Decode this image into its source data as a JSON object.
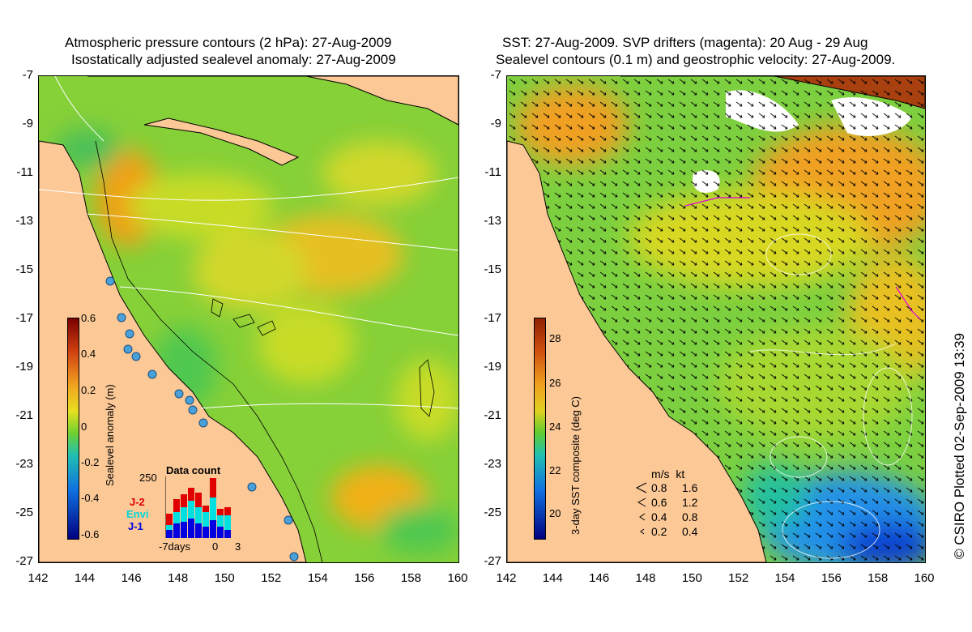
{
  "left_panel": {
    "title_line1": "Atmospheric pressure contours (2 hPa): 27-Aug-2009",
    "title_line2": "Isostatically adjusted sealevel anomaly: 27-Aug-2009",
    "colorbar": {
      "label": "Sealevel anomaly (m)",
      "ticks": [
        "0.6",
        "0.4",
        "0.2",
        "0",
        "-0.2",
        "-0.4",
        "-0.6"
      ]
    },
    "inset": {
      "title": "Data count",
      "max_label": "250",
      "x_labels": [
        "-7days",
        "0",
        "3"
      ],
      "series": [
        {
          "name": "J-2",
          "color": "#e00000"
        },
        {
          "name": "Envi",
          "color": "#00e0e0"
        },
        {
          "name": "J-1",
          "color": "#0000e0"
        }
      ]
    }
  },
  "right_panel": {
    "title_line1": "SST: 27-Aug-2009. SVP drifters (magenta): 20 Aug - 29 Aug",
    "title_line2": "Sealevel contours (0.1 m) and geostrophic velocity: 27-Aug-2009.",
    "colorbar": {
      "label": "3-day SST composite (deg C)",
      "ticks": [
        "28",
        "26",
        "24",
        "22",
        "20"
      ]
    },
    "velocity_legend": {
      "header": "m/s  kt",
      "rows": [
        {
          "ms": "0.8",
          "kt": "1.6"
        },
        {
          "ms": "0.6",
          "kt": "1.2"
        },
        {
          "ms": "0.4",
          "kt": "0.8"
        },
        {
          "ms": "0.2",
          "kt": "0.4"
        }
      ]
    }
  },
  "axes": {
    "lat_labels": [
      "-7",
      "-9",
      "-11",
      "-13",
      "-15",
      "-17",
      "-19",
      "-21",
      "-23",
      "-25",
      "-27"
    ],
    "lon_labels": [
      "142",
      "144",
      "146",
      "148",
      "150",
      "152",
      "154",
      "156",
      "158",
      "160"
    ]
  },
  "credit": "© CSIRO Plotted 02-Sep-2009 13:39",
  "colors": {
    "land": "#fbc896",
    "ocean_green": "#8ad23c",
    "warm": "#f5b400",
    "cold": "#1e6ef0"
  }
}
